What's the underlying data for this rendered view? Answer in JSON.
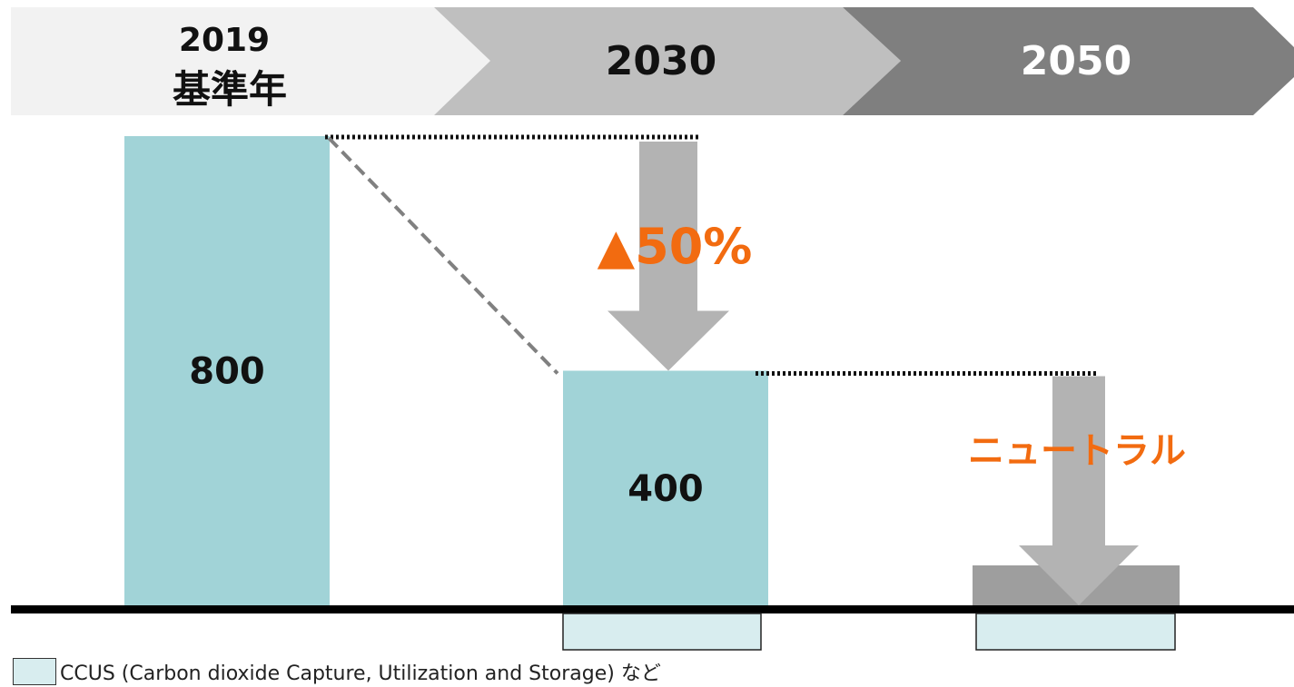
{
  "chart_data": {
    "type": "bar",
    "categories": [
      "2019\n基準年",
      "2030",
      "2050"
    ],
    "header_labels": [
      [
        "2019",
        "基準年"
      ],
      [
        "2030"
      ],
      [
        "2050"
      ]
    ],
    "values": [
      800,
      400,
      0
    ],
    "value_labels": [
      "800",
      "400",
      ""
    ],
    "ccus_values": [
      0,
      80,
      80
    ],
    "ylim": [
      0,
      800
    ],
    "annotations": {
      "reduction_2030": "▲50%",
      "target_2050": "ニュートラル"
    },
    "legend": {
      "label": "CCUS (Carbon dioxide Capture, Utilization and Storage) など",
      "placement": "bottom-left"
    },
    "colors": {
      "bar": "#a1d3d7",
      "ccus": "#d8edef",
      "arrow": "#b3b3b3",
      "offset_block": "#9e9e9e",
      "accent": "#f26b10",
      "band_1": "#f2f2f2",
      "band_2": "#bfbfbf",
      "band_3": "#7f7f7f",
      "text_dark": "#111111",
      "text_light": "#ffffff"
    }
  }
}
